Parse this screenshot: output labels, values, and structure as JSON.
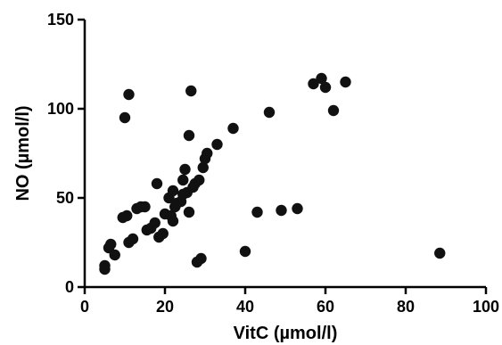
{
  "chart_data": {
    "type": "scatter",
    "title": "",
    "xlabel": "VitC (µmol/l)",
    "ylabel": "NO (µmol/l)",
    "xlim": [
      0,
      100
    ],
    "ylim": [
      0,
      150
    ],
    "x_ticks": [
      0,
      20,
      40,
      60,
      80,
      100
    ],
    "y_ticks": [
      0,
      50,
      100,
      150
    ],
    "grid": false,
    "marker_color": "#111111",
    "points": [
      {
        "x": 5,
        "y": 10
      },
      {
        "x": 5,
        "y": 12
      },
      {
        "x": 6,
        "y": 22
      },
      {
        "x": 6.5,
        "y": 24
      },
      {
        "x": 7.5,
        "y": 18
      },
      {
        "x": 9.5,
        "y": 39
      },
      {
        "x": 10,
        "y": 95
      },
      {
        "x": 10.5,
        "y": 40
      },
      {
        "x": 11,
        "y": 108
      },
      {
        "x": 11,
        "y": 25
      },
      {
        "x": 12,
        "y": 27
      },
      {
        "x": 13,
        "y": 44
      },
      {
        "x": 14,
        "y": 45
      },
      {
        "x": 15,
        "y": 45
      },
      {
        "x": 15.5,
        "y": 32
      },
      {
        "x": 16.5,
        "y": 33
      },
      {
        "x": 17.5,
        "y": 36
      },
      {
        "x": 18,
        "y": 58
      },
      {
        "x": 18.5,
        "y": 28
      },
      {
        "x": 19.5,
        "y": 30
      },
      {
        "x": 20,
        "y": 41
      },
      {
        "x": 21,
        "y": 50
      },
      {
        "x": 21.5,
        "y": 40
      },
      {
        "x": 22,
        "y": 37
      },
      {
        "x": 22,
        "y": 54
      },
      {
        "x": 22.5,
        "y": 45
      },
      {
        "x": 23,
        "y": 47
      },
      {
        "x": 24,
        "y": 48
      },
      {
        "x": 24.5,
        "y": 52
      },
      {
        "x": 24.5,
        "y": 60
      },
      {
        "x": 25,
        "y": 66
      },
      {
        "x": 25.5,
        "y": 53
      },
      {
        "x": 26,
        "y": 85
      },
      {
        "x": 26,
        "y": 42
      },
      {
        "x": 26.5,
        "y": 110
      },
      {
        "x": 27,
        "y": 56
      },
      {
        "x": 27.5,
        "y": 58
      },
      {
        "x": 28,
        "y": 14
      },
      {
        "x": 28.5,
        "y": 60
      },
      {
        "x": 29,
        "y": 16
      },
      {
        "x": 29.5,
        "y": 67
      },
      {
        "x": 30,
        "y": 72
      },
      {
        "x": 30.5,
        "y": 75
      },
      {
        "x": 33,
        "y": 80
      },
      {
        "x": 37,
        "y": 89
      },
      {
        "x": 40,
        "y": 20
      },
      {
        "x": 43,
        "y": 42
      },
      {
        "x": 46,
        "y": 98
      },
      {
        "x": 49,
        "y": 43
      },
      {
        "x": 53,
        "y": 44
      },
      {
        "x": 57,
        "y": 114
      },
      {
        "x": 59,
        "y": 117
      },
      {
        "x": 60,
        "y": 112
      },
      {
        "x": 62,
        "y": 99
      },
      {
        "x": 65,
        "y": 115
      },
      {
        "x": 88.5,
        "y": 19
      }
    ]
  }
}
